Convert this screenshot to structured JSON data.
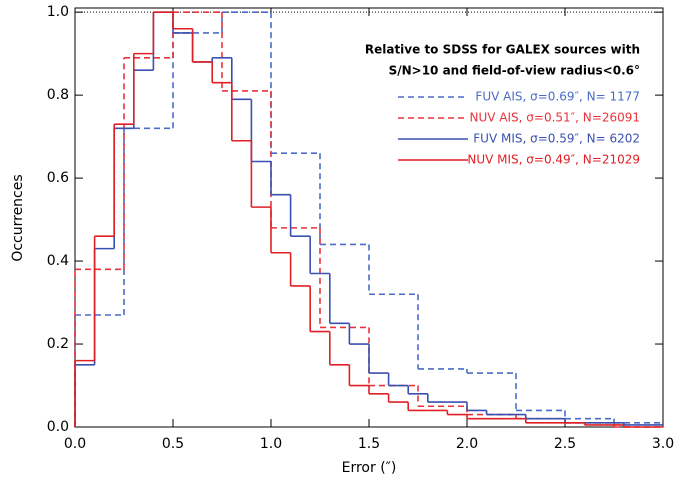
{
  "chart_data": {
    "type": "histogram",
    "x_label": "Error (″)",
    "y_label": "Occurrences",
    "annotation": [
      "Relative to SDSS for GALEX sources with",
      "S/N>10 and field-of-view radius<0.6°"
    ],
    "xlim": [
      0,
      3.0
    ],
    "ylim": [
      0,
      1.01
    ],
    "xticks": [
      {
        "value": 0,
        "label": "0.0"
      },
      {
        "value": 0.5,
        "label": "0.5"
      },
      {
        "value": 1,
        "label": "1.0"
      },
      {
        "value": 1.5,
        "label": "1.5"
      },
      {
        "value": 2,
        "label": "2.0"
      },
      {
        "value": 2.5,
        "label": "2.5"
      },
      {
        "value": 3,
        "label": "3.0"
      }
    ],
    "yticks": [
      {
        "value": 0,
        "label": "0.0"
      },
      0.2,
      0.4,
      0.6,
      0.8,
      {
        "value": 1,
        "label": "1.0"
      }
    ],
    "reference_line": 1,
    "series": [
      {
        "name": "FUV AIS, σ=0.69″, N= 1177",
        "color": "#4a6cc8",
        "dash": true,
        "bins": [
          0,
          0.25,
          0.5,
          0.75,
          1,
          1.25,
          1.5,
          1.75,
          2,
          2.25,
          2.5,
          2.75,
          3
        ],
        "values": [
          0.27,
          0.72,
          0.95,
          1.0,
          0.66,
          0.44,
          0.32,
          0.14,
          0.13,
          0.04,
          0.02,
          0.01
        ]
      },
      {
        "name": "NUV AIS, σ=0.51″, N=26091",
        "color": "#e8333b",
        "dash": true,
        "bins": [
          0,
          0.25,
          0.5,
          0.75,
          1,
          1.25,
          1.5,
          1.75,
          2,
          2.25,
          2.5,
          2.75,
          3
        ],
        "values": [
          0.38,
          0.89,
          1.0,
          0.81,
          0.48,
          0.24,
          0.1,
          0.05,
          0.03,
          0.02,
          0.01,
          0
        ]
      },
      {
        "name": "FUV MIS, σ=0.59″, N= 6202",
        "color": "#3a50b0",
        "dash": false,
        "bins": [
          0,
          0.1,
          0.2,
          0.3,
          0.4,
          0.5,
          0.6,
          0.7,
          0.8,
          0.9,
          1,
          1.1,
          1.2,
          1.3,
          1.4,
          1.5,
          1.6,
          1.7,
          1.8,
          1.9,
          2,
          2.1,
          2.2,
          2.3,
          2.4,
          2.5,
          2.6,
          2.7,
          2.8,
          2.9,
          3
        ],
        "values": [
          0.15,
          0.43,
          0.72,
          0.86,
          1.0,
          0.95,
          0.88,
          0.89,
          0.79,
          0.64,
          0.56,
          0.46,
          0.37,
          0.25,
          0.2,
          0.13,
          0.1,
          0.08,
          0.06,
          0.06,
          0.04,
          0.03,
          0.03,
          0.02,
          0.02,
          0.01,
          0.01,
          0.01,
          0.005,
          0.005
        ]
      },
      {
        "name": "NUV MIS, σ=0.49″, N=21029",
        "color": "#e02025",
        "dash": false,
        "bins": [
          0,
          0.1,
          0.2,
          0.3,
          0.4,
          0.5,
          0.6,
          0.7,
          0.8,
          0.9,
          1,
          1.1,
          1.2,
          1.3,
          1.4,
          1.5,
          1.6,
          1.7,
          1.8,
          1.9,
          2,
          2.1,
          2.2,
          2.3,
          2.4,
          2.5,
          2.6,
          2.7,
          2.8,
          2.9,
          3
        ],
        "values": [
          0.16,
          0.46,
          0.73,
          0.9,
          1.0,
          0.96,
          0.88,
          0.83,
          0.69,
          0.53,
          0.42,
          0.34,
          0.23,
          0.15,
          0.1,
          0.08,
          0.06,
          0.04,
          0.04,
          0.03,
          0.02,
          0.02,
          0.02,
          0.01,
          0.01,
          0.01,
          0.005,
          0.005,
          0,
          0
        ]
      }
    ]
  }
}
